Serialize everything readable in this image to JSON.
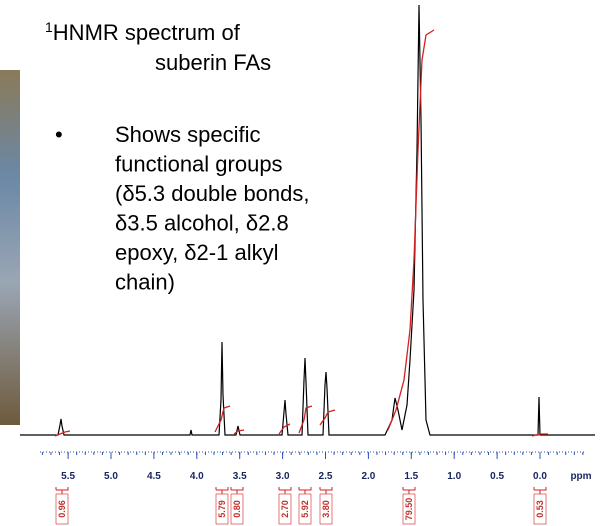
{
  "slide": {
    "title_sup": "1",
    "title_line1": "HNMR spectrum of",
    "title_line2": "suberin FAs",
    "bullet_lines": [
      "Shows specific",
      "functional groups",
      "(δ5.3 double bonds,",
      "δ3.5 alcohol, δ2.8",
      "epoxy, δ2-1 alkyl",
      "chain)"
    ]
  },
  "spectrum": {
    "xlim": [
      5.8,
      -0.5
    ],
    "xticks": [
      5.5,
      {
        "value": 5,
        "label": "5.0"
      },
      4.5,
      {
        "value": 4,
        "label": "4.0"
      },
      3.5,
      {
        "value": 3,
        "label": "3.0"
      },
      2.5,
      {
        "value": 2,
        "label": "2.0"
      },
      1.5,
      {
        "value": 1,
        "label": "1.0"
      },
      0.5,
      {
        "value": 0,
        "label": "0.0"
      }
    ],
    "x_label": "ppm",
    "integrals": [
      0.96,
      5.79,
      {
        "value": 0.8,
        "label": "0.80"
      },
      {
        "value": 2.7,
        "label": "2.70"
      },
      5.92,
      {
        "value": 3.8,
        "label": "3.80"
      },
      {
        "value": 79.5,
        "label": "79.50"
      },
      0.53
    ]
  }
}
